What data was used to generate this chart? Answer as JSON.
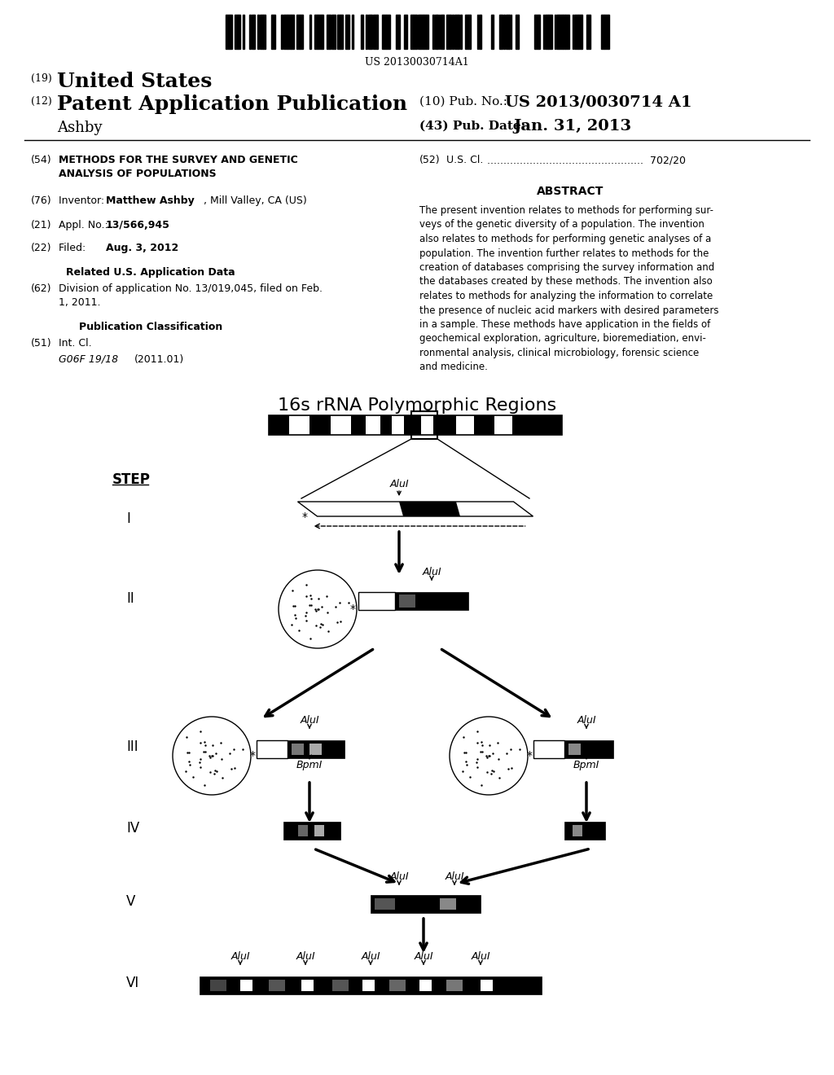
{
  "background_color": "#ffffff",
  "page_width": 10.24,
  "page_height": 13.2,
  "barcode_text": "US 20130030714A1",
  "diagram_title": "16s rRNA Polymorphic Regions",
  "abstract_text": "The present invention relates to methods for performing sur-\nveys of the genetic diversity of a population. The invention\nalso relates to methods for performing genetic analyses of a\npopulation. The invention further relates to methods for the\ncreation of databases comprising the survey information and\nthe databases created by these methods. The invention also\nrelates to methods for analyzing the information to correlate\nthe presence of nucleic acid markers with desired parameters\nin a sample. These methods have application in the fields of\ngeochemical exploration, agriculture, bioremediation, envi-\nronmental analysis, clinical microbiology, forensic science\nand medicine."
}
